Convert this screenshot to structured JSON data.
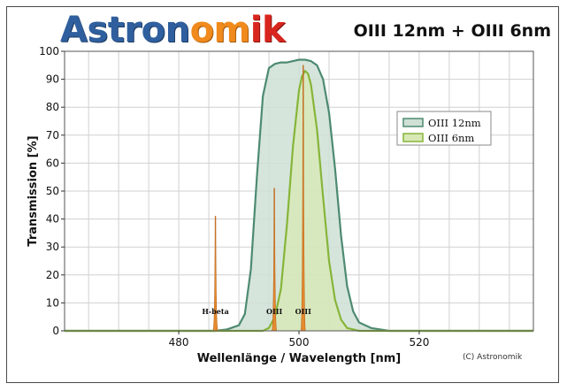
{
  "header": {
    "logo_text": "Astronomik",
    "title": "OIII 12nm + OIII 6nm"
  },
  "footer": {
    "copyright": "(C) Astronomik"
  },
  "colors": {
    "series_12nm_line": "#4d8a72",
    "series_12nm_fill": "#cfe0d5",
    "series_6nm_line": "#86b53a",
    "series_6nm_fill": "#d8e8b4",
    "emission_fill": "#e58a2e",
    "grid": "#d0d0d0",
    "logo_blue": "#2f5f9e",
    "logo_orange": "#f08a1c",
    "logo_red": "#d8261e"
  },
  "chart_data": {
    "type": "area",
    "title": "OIII 12nm + OIII 6nm",
    "xlabel": "Wellenlänge / Wavelength [nm]",
    "ylabel": "Transmission [%]",
    "xlim": [
      461,
      539
    ],
    "ylim": [
      0,
      100
    ],
    "x_ticks": [
      480,
      500,
      520
    ],
    "x_minor_step": 5,
    "y_ticks": [
      0,
      10,
      20,
      30,
      40,
      50,
      60,
      70,
      80,
      90,
      100
    ],
    "grid": true,
    "legend_position": "right-middle",
    "series": [
      {
        "name": "OIII 12nm",
        "x": [
          461,
          486,
          488,
          490,
          491,
          492,
          493,
          494,
          495,
          496,
          497,
          498,
          499,
          500,
          501,
          502,
          503,
          504,
          505,
          506,
          507,
          508,
          509,
          510,
          512,
          515,
          539
        ],
        "y": [
          0,
          0,
          0.5,
          2,
          6,
          22,
          55,
          84,
          94,
          95.5,
          96,
          96,
          96.5,
          97,
          97,
          96.5,
          95,
          90,
          78,
          58,
          34,
          16,
          7,
          3,
          1,
          0,
          0
        ]
      },
      {
        "name": "OIII 6nm",
        "x": [
          461,
          494,
          495,
          496,
          497,
          498,
          499,
          500,
          500.5,
          501,
          501.5,
          502,
          503,
          504,
          505,
          506,
          507,
          508,
          510,
          539
        ],
        "y": [
          0,
          0,
          1,
          5,
          15,
          38,
          66,
          86,
          91,
          93,
          92,
          88,
          72,
          48,
          25,
          11,
          4,
          1,
          0,
          0
        ]
      }
    ],
    "emission_lines": [
      {
        "label": "H-beta",
        "x": 486.1,
        "y": 41
      },
      {
        "label": "OIII",
        "x": 495.9,
        "y": 51
      },
      {
        "label": "OIII",
        "x": 500.7,
        "y": 95
      }
    ]
  }
}
